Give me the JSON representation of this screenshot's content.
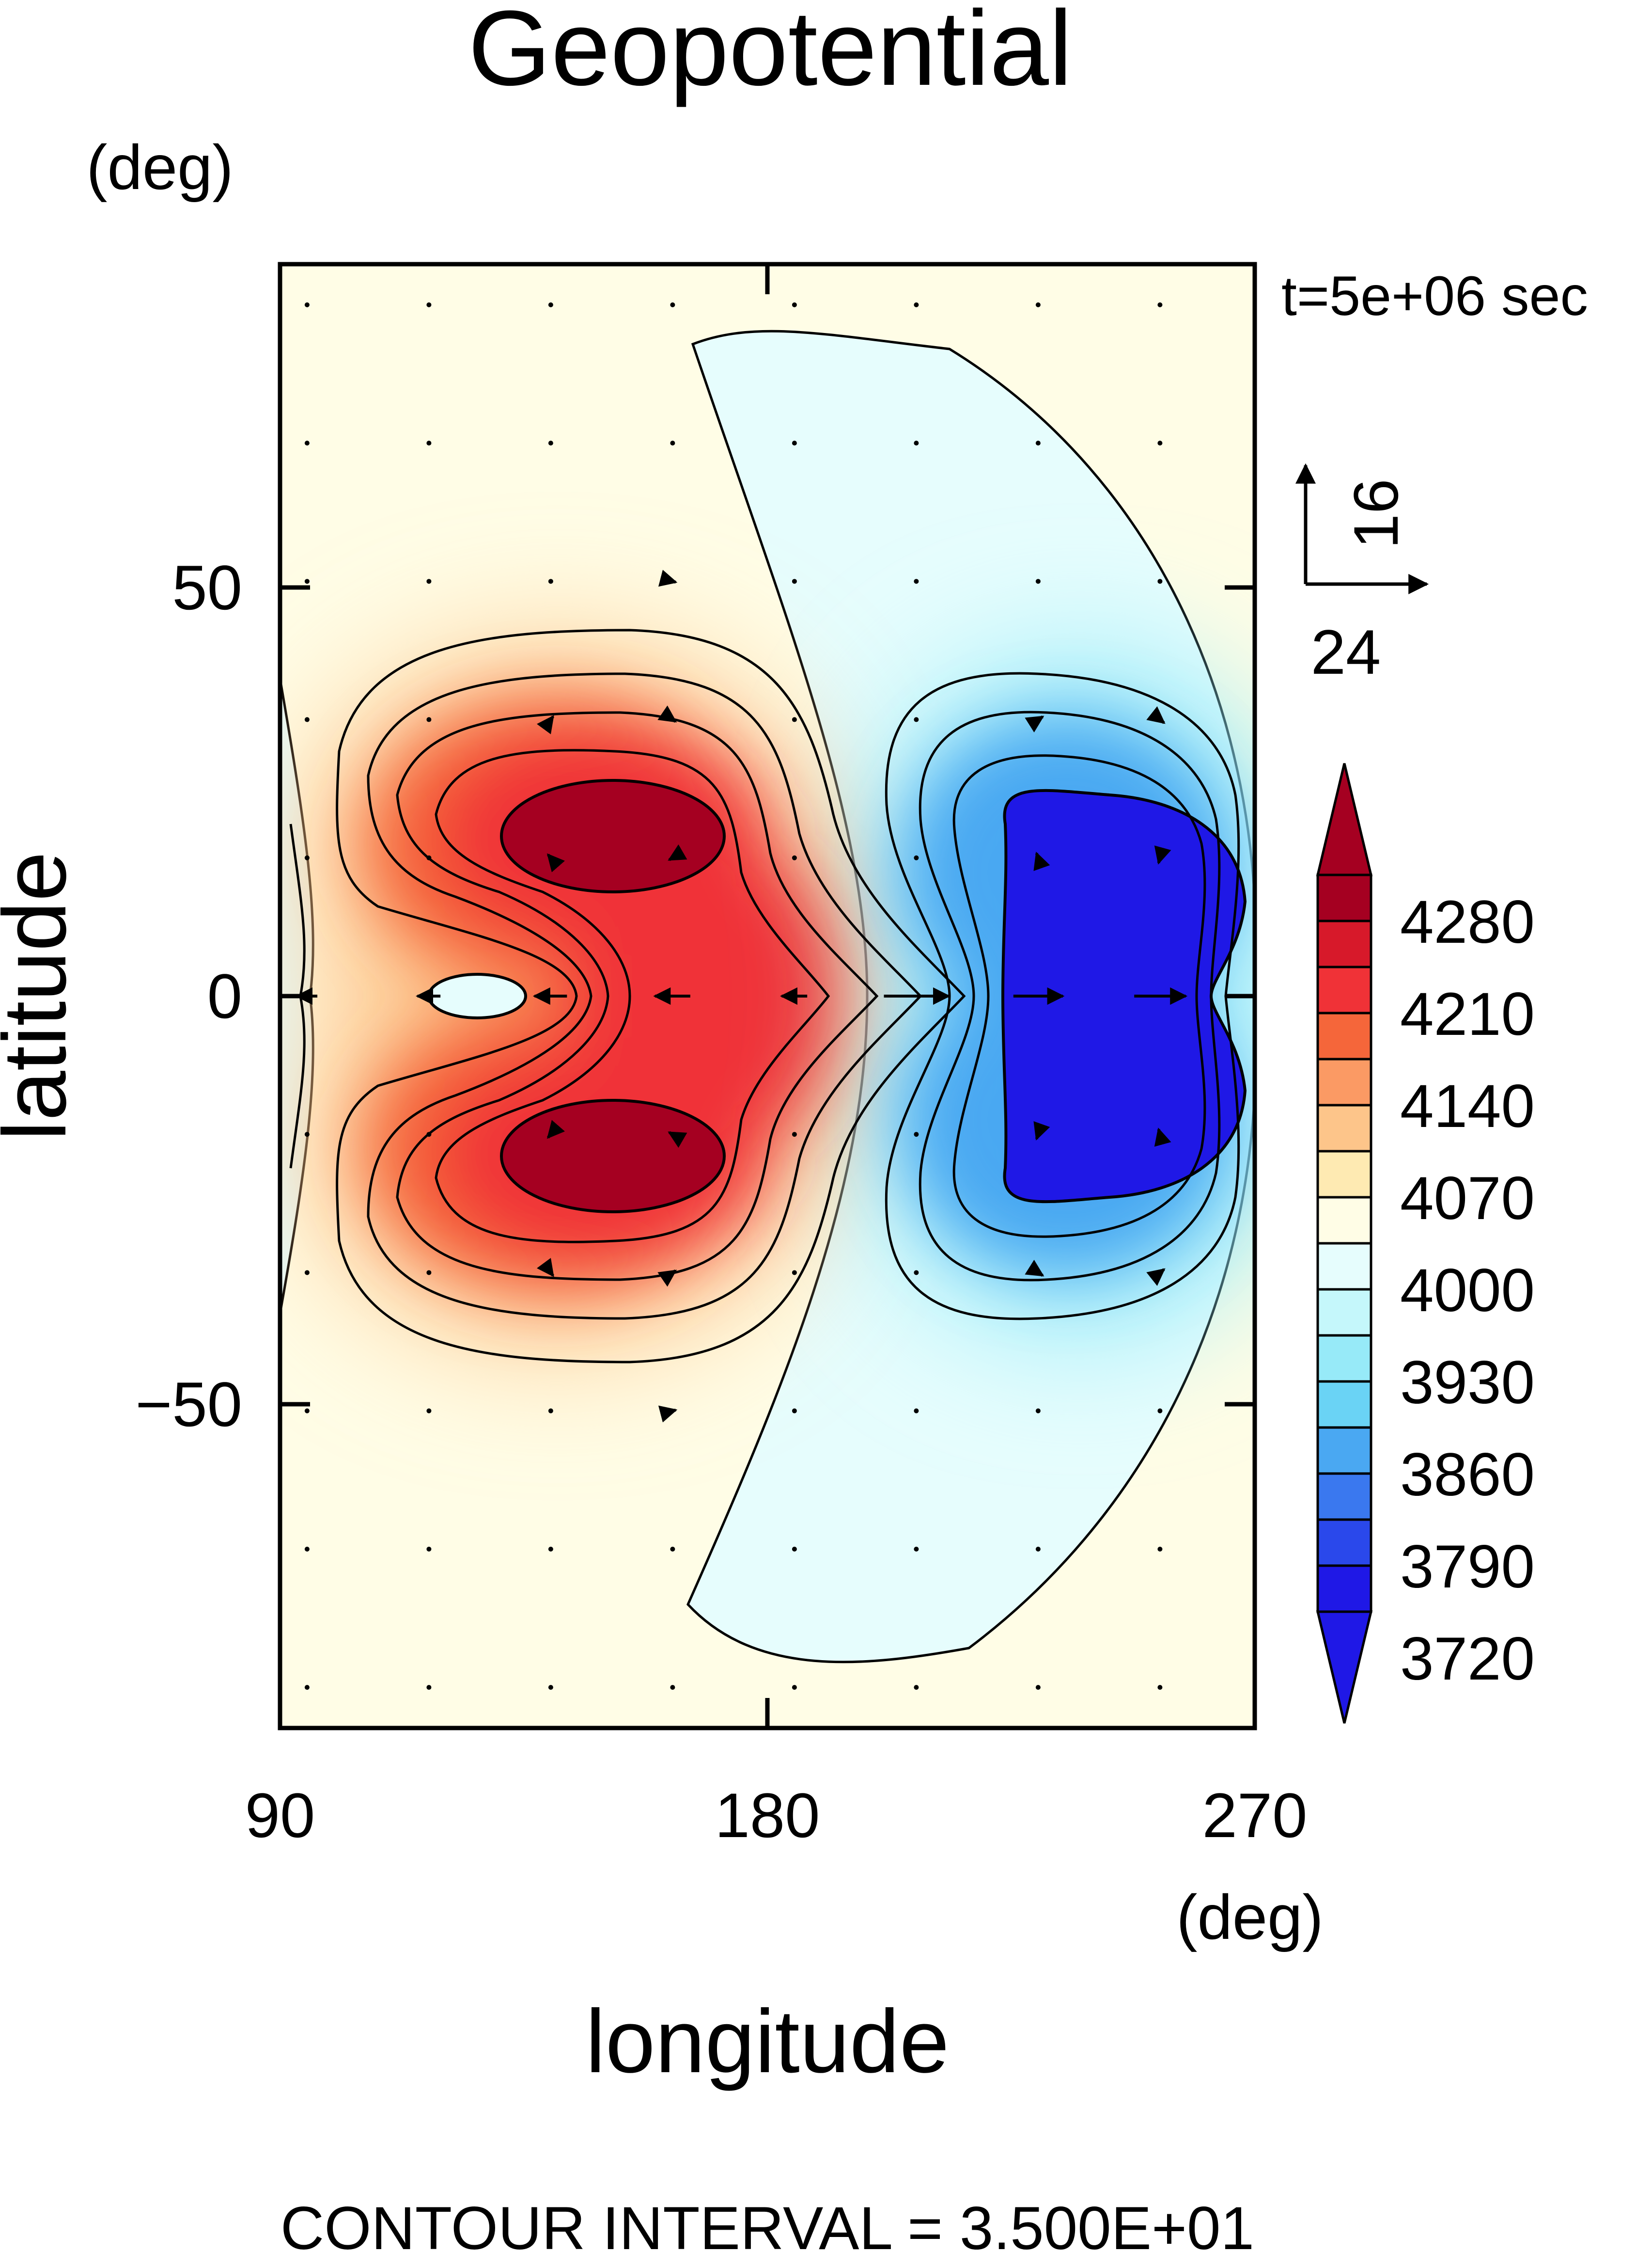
{
  "chart_data": {
    "type": "heatmap",
    "title": "Geopotential",
    "xlabel": "longitude",
    "ylabel": "latitude",
    "x_unit": "(deg)",
    "y_unit": "(deg)",
    "time_label": "t=5e+06 sec",
    "xlim": [
      90,
      270
    ],
    "ylim": [
      -90,
      90
    ],
    "x_ticks": [
      90,
      180,
      270
    ],
    "y_ticks": [
      50,
      0,
      -50
    ],
    "y_tick_labels": [
      "50",
      "0",
      "−50"
    ],
    "vector_reference": {
      "u": "24",
      "v": "16"
    },
    "footer": "CONTOUR INTERVAL = 3.500E+01",
    "contour_interval": 35,
    "colorbar": {
      "labels": [
        "4280",
        "4210",
        "4140",
        "4070",
        "4000",
        "3930",
        "3860",
        "3790",
        "3720"
      ],
      "colors": [
        "#a50021",
        "#d7192a",
        "#f03237",
        "#f5663a",
        "#fb9a64",
        "#fdc58a",
        "#feeab2",
        "#fffde6",
        "#e6fdfd",
        "#c5f7fb",
        "#97eaf8",
        "#6ad3f5",
        "#4aa8f2",
        "#3a78ef",
        "#2a48eb",
        "#1f18e6"
      ],
      "levels": [
        4315,
        4280,
        4245,
        4210,
        4175,
        4140,
        4105,
        4070,
        4035,
        4000,
        3965,
        3930,
        3895,
        3860,
        3825,
        3790,
        3755,
        3720
      ]
    },
    "field_features": {
      "background": 4020,
      "highs": [
        {
          "lon": 155,
          "lat": 22,
          "value": 4290
        },
        {
          "lon": 155,
          "lat": -22,
          "value": 4290
        }
      ],
      "lows": [
        {
          "lon": 240,
          "lat": 18,
          "value": 3710
        },
        {
          "lon": 240,
          "lat": -18,
          "value": 3710
        }
      ],
      "weak_low_center": {
        "lon": 127,
        "lat": 0,
        "value": 3990
      }
    }
  }
}
